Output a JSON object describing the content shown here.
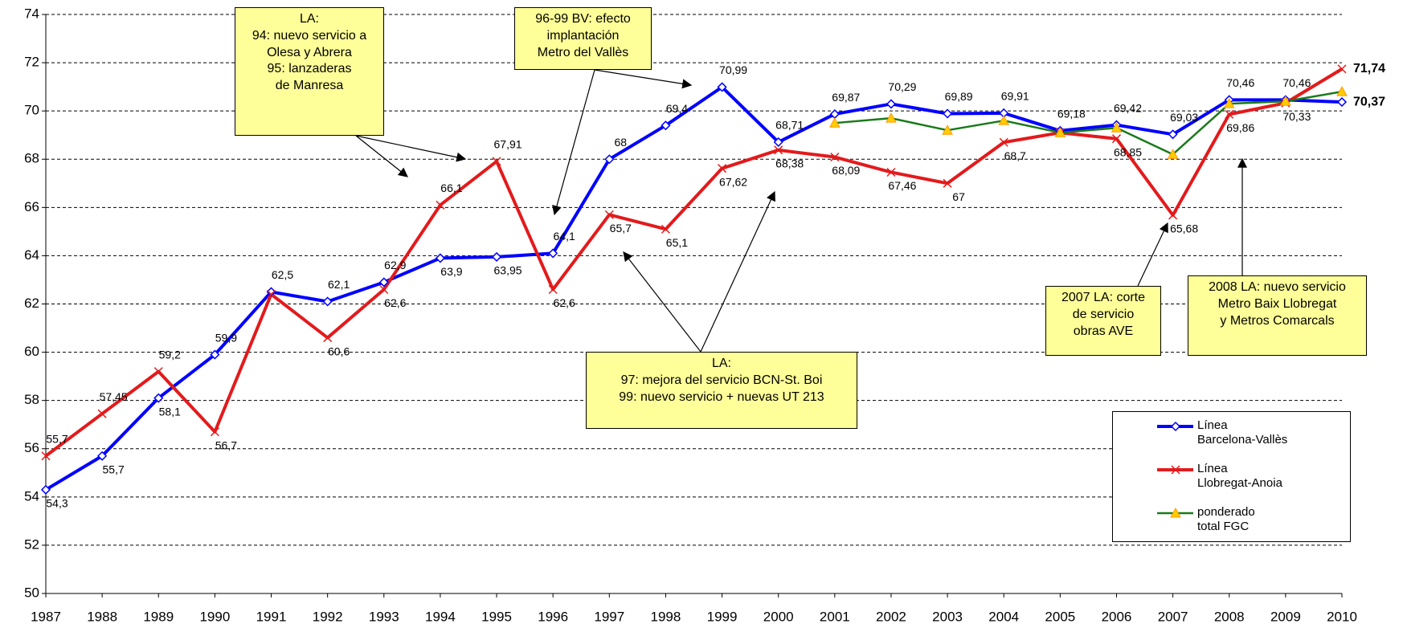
{
  "chart_data": {
    "type": "line",
    "categories": [
      "1987",
      "1988",
      "1989",
      "1990",
      "1991",
      "1992",
      "1993",
      "1994",
      "1995",
      "1996",
      "1997",
      "1998",
      "1999",
      "2000",
      "2001",
      "2002",
      "2003",
      "2004",
      "2005",
      "2006",
      "2007",
      "2008",
      "2009",
      "2010"
    ],
    "series": [
      {
        "name": "Línea\nBarcelona-Vallès",
        "color": "#0000ff",
        "marker": "diamond",
        "values": [
          54.3,
          55.7,
          58.1,
          59.9,
          62.5,
          62.1,
          62.9,
          63.9,
          63.95,
          64.1,
          68,
          69.4,
          70.99,
          68.71,
          69.87,
          70.29,
          69.89,
          69.91,
          69.18,
          69.42,
          69.03,
          70.46,
          70.46,
          70.37
        ],
        "value_labels": [
          "54,3",
          "55,7",
          "58,1",
          "59,9",
          "62,5",
          "62,1",
          "62,9",
          "63,9",
          "63,95",
          "64,1",
          "68",
          "69,4",
          "70,99",
          "68,71",
          "69,87",
          "70,29",
          "69,89",
          "69,91",
          "69,18",
          "69,42",
          "69,03",
          "70,46",
          "70,46",
          "70,37"
        ]
      },
      {
        "name": "Línea\nLlobregat-Anoia",
        "color": "#e31a1c",
        "marker": "x",
        "values": [
          55.7,
          57.45,
          59.2,
          56.7,
          62.4,
          60.6,
          62.6,
          66.1,
          67.91,
          62.6,
          65.7,
          65.1,
          67.62,
          68.38,
          68.09,
          67.46,
          67,
          68.7,
          69.1,
          68.85,
          65.68,
          69.86,
          70.33,
          71.74
        ],
        "value_labels": [
          "55,7",
          "57,45",
          "59,2",
          "56,7",
          null,
          "60,6",
          "62,6",
          "66,1",
          "67,91",
          "62,6",
          "65,7",
          "65,1",
          "67,62",
          "68,38",
          "68,09",
          "67,46",
          "67",
          "68,7",
          null,
          "68,85",
          "65,68",
          "69,86",
          "70,33",
          "71,74"
        ]
      },
      {
        "name": "ponderado\ntotal FGC",
        "color": "#1a7a1a",
        "marker": "triangle",
        "values": [
          null,
          null,
          null,
          null,
          null,
          null,
          null,
          null,
          null,
          null,
          null,
          null,
          null,
          null,
          69.5,
          69.7,
          69.2,
          69.6,
          69.1,
          69.3,
          68.2,
          70.3,
          70.4,
          70.8
        ]
      }
    ],
    "ylim": [
      50,
      74
    ],
    "yticks": [
      50,
      52,
      54,
      56,
      58,
      60,
      62,
      64,
      66,
      68,
      70,
      72,
      74
    ],
    "grid": true,
    "legend": "lower right",
    "annotations": [
      "LA:\n94: nuevo servicio a\nOlesa y Abrera\n95: lanzaderas\nde Manresa",
      "96-99 BV: efecto\nimplantación\nMetro del Vallès",
      "LA:\n97: mejora del servicio BCN-St. Boi\n99: nuevo servicio + nuevas UT 213",
      "2007 LA: corte\nde servicio\nobras AVE",
      "2008 LA:  nuevo servicio\nMetro Baix Llobregat\ny Metros Comarcals"
    ]
  }
}
